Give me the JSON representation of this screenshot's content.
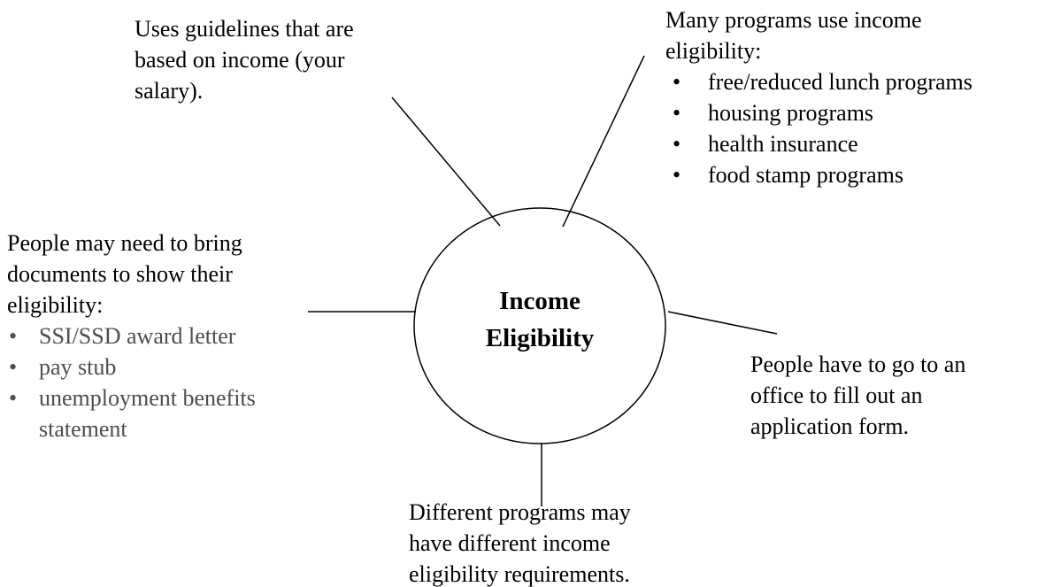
{
  "center": {
    "lines": [
      "Income",
      "Eligibility"
    ]
  },
  "nodes": [
    {
      "lines": [
        "Uses guidelines that are",
        "based on income (your",
        "salary)."
      ]
    },
    {
      "lines": [
        "Many programs use income",
        "eligibility:"
      ],
      "bullets": [
        [
          "free/reduced lunch programs"
        ],
        [
          "housing programs"
        ],
        [
          "health insurance"
        ],
        [
          "food stamp programs"
        ]
      ]
    },
    {
      "lines": [
        "People may need to bring",
        "documents to show their",
        "eligibility:"
      ],
      "bullets": [
        [
          "SSI/SSD award letter"
        ],
        [
          "pay stub"
        ],
        [
          "unemployment benefits",
          "statement"
        ]
      ]
    },
    {
      "lines": [
        "People have to go to an",
        "office to fill out an",
        "application form."
      ]
    },
    {
      "lines": [
        "Different programs may",
        "have different income",
        "eligibility requirements."
      ]
    }
  ]
}
